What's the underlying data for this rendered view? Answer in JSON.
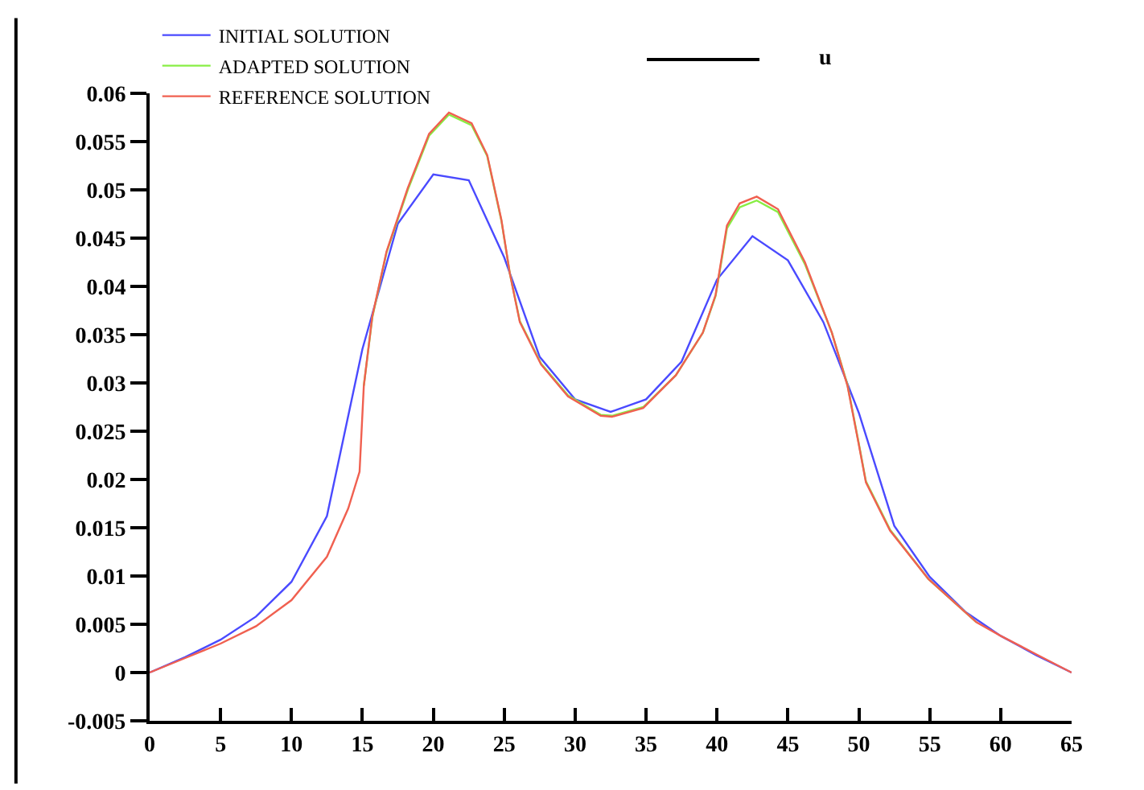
{
  "chart_data": {
    "type": "line",
    "legend_title": "u",
    "legend": "top left",
    "grid": false,
    "marker": "none",
    "line_style": "solid",
    "xlim": [
      0,
      65
    ],
    "xticks": [
      0,
      5,
      10,
      15,
      20,
      25,
      30,
      35,
      40,
      45,
      50,
      55,
      60,
      65
    ],
    "ylim": [
      -0.005,
      0.06
    ],
    "yticks": [
      {
        "value": 0.06,
        "label": "0.06"
      },
      {
        "value": 0.055,
        "label": "0.055"
      },
      {
        "value": 0.05,
        "label": "0.05"
      },
      {
        "value": 0.045,
        "label": "0.045"
      },
      {
        "value": 0.04,
        "label": "0.04"
      },
      {
        "value": 0.035,
        "label": "0.035"
      },
      {
        "value": 0.03,
        "label": "0.03"
      },
      {
        "value": 0.025,
        "label": "0.025"
      },
      {
        "value": 0.02,
        "label": "0.02"
      },
      {
        "value": 0.015,
        "label": "0.015"
      },
      {
        "value": 0.01,
        "label": "0.01"
      },
      {
        "value": 0.005,
        "label": "0.005"
      },
      {
        "value": 0,
        "label": "0"
      },
      {
        "value": -0.005,
        "label": "-0.005"
      }
    ],
    "series": [
      {
        "name": "INITIAL SOLUTION",
        "color": "#4a4aff",
        "x": [
          0,
          2.5,
          5,
          7.5,
          10,
          12.5,
          15,
          17.5,
          20,
          22.5,
          25,
          27.5,
          30,
          32.5,
          35,
          37.5,
          40,
          42.5,
          45,
          47.5,
          50,
          52.5,
          55,
          57.5,
          60,
          62.5,
          65
        ],
        "values": [
          0,
          0.0016,
          0.0034,
          0.0058,
          0.0094,
          0.0162,
          0.0335,
          0.0465,
          0.0516,
          0.051,
          0.043,
          0.0327,
          0.0283,
          0.027,
          0.0283,
          0.0322,
          0.0407,
          0.0452,
          0.0427,
          0.0363,
          0.0269,
          0.0152,
          0.0099,
          0.0063,
          0.0038,
          0.0018,
          0
        ]
      },
      {
        "name": "ADAPTED SOLUTION",
        "color": "#88ee44",
        "x": [
          15.1,
          15.7,
          16.7,
          18.2,
          19.7,
          21.1,
          22.7,
          23.8,
          24.8,
          25.4,
          26.1,
          27.6,
          29.5,
          31.8,
          32.6,
          34.8,
          37.1,
          39,
          39.9,
          40.7,
          41.6,
          42.8,
          44.3,
          46.2,
          48.1,
          49.2,
          50,
          50.5,
          52.2,
          54.9,
          58.3
        ],
        "values": [
          0.0297,
          0.0368,
          0.0435,
          0.05,
          0.0556,
          0.0578,
          0.0567,
          0.0535,
          0.0468,
          0.0413,
          0.0364,
          0.032,
          0.0287,
          0.0267,
          0.0266,
          0.0275,
          0.0308,
          0.0352,
          0.039,
          0.046,
          0.0482,
          0.0489,
          0.0477,
          0.0423,
          0.0352,
          0.0298,
          0.0237,
          0.0198,
          0.0148,
          0.0097,
          0.0052
        ]
      },
      {
        "name": "REFERENCE SOLUTION",
        "color": "#f06050",
        "x": [
          0,
          2.5,
          5,
          7.5,
          10,
          12.5,
          14,
          14.8,
          15.1,
          15.7,
          16.7,
          18.2,
          19.7,
          21.1,
          22.7,
          23.8,
          24.8,
          25.4,
          26.1,
          27.6,
          29.5,
          31.8,
          32.6,
          34.8,
          37.1,
          39,
          39.9,
          40.7,
          41.6,
          42.8,
          44.3,
          46.2,
          48.1,
          49.2,
          50,
          50.5,
          52.2,
          54.9,
          58.3,
          60,
          62.5,
          65
        ],
        "values": [
          0,
          0.0015,
          0.003,
          0.0048,
          0.0075,
          0.012,
          0.017,
          0.0208,
          0.0297,
          0.0369,
          0.0436,
          0.0502,
          0.0558,
          0.058,
          0.0569,
          0.0536,
          0.0469,
          0.0413,
          0.0363,
          0.0319,
          0.0286,
          0.0266,
          0.0265,
          0.0274,
          0.0308,
          0.0352,
          0.0391,
          0.0463,
          0.0486,
          0.0493,
          0.048,
          0.0425,
          0.0352,
          0.0297,
          0.0236,
          0.0197,
          0.0147,
          0.0097,
          0.0052,
          0.0038,
          0.0019,
          0
        ]
      }
    ]
  }
}
